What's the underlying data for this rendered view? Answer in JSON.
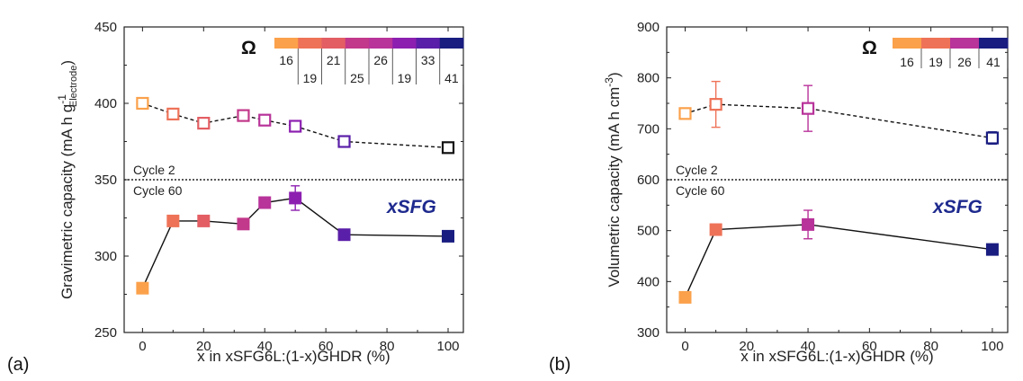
{
  "colors": {
    "c16": "#fba14b",
    "c19": "#ee7257",
    "c21": "#e35e63",
    "c25": "#c2388a",
    "c26": "#b8339a",
    "c33": "#8c1fb0",
    "c41": "#191d80",
    "black": "#111111"
  },
  "chart_data": [
    {
      "panel": "(a)",
      "type": "scatter",
      "xlabel": "x in xSFG6L:(1-x)GHDR (%)",
      "ylabel": "Gravimetric capacity (mA h g",
      "ylabel_sup": "-1",
      "ylabel_sub": "Electrode",
      "ylabel_close": ")",
      "xlim": [
        -6,
        105
      ],
      "ylim": [
        250,
        450
      ],
      "xticks": [
        0,
        20,
        40,
        60,
        80,
        100
      ],
      "yticks": [
        250,
        300,
        350,
        400,
        450
      ],
      "divider_y": 350,
      "cycle_top": "Cycle 2",
      "cycle_bottom": "Cycle 60",
      "series_label": "xSFG",
      "colorbar": {
        "symbol": "Ω",
        "colors": [
          "#fba14b",
          "#ee7257",
          "#e35e63",
          "#c2388a",
          "#b8339a",
          "#8c1fb0",
          "#5a1fa8",
          "#191d80"
        ],
        "top_labels": [
          "16",
          "21",
          "26",
          "33"
        ],
        "bottom_labels": [
          "19",
          "25",
          "19",
          "41"
        ]
      },
      "series": [
        {
          "name": "Cycle 2",
          "marker": "open-square",
          "line": "dashed",
          "points": [
            {
              "x": 0,
              "y": 400,
              "err": 2,
              "color": "#fba14b"
            },
            {
              "x": 10,
              "y": 393,
              "err": 2,
              "color": "#ee7257"
            },
            {
              "x": 20,
              "y": 387,
              "err": 3,
              "color": "#e35e63"
            },
            {
              "x": 33,
              "y": 392,
              "err": 2,
              "color": "#c2388a"
            },
            {
              "x": 40,
              "y": 389,
              "err": 2,
              "color": "#b8339a"
            },
            {
              "x": 50,
              "y": 385,
              "err": 2,
              "color": "#8c1fb0"
            },
            {
              "x": 66,
              "y": 375,
              "err": 2,
              "color": "#5a1fa8"
            },
            {
              "x": 100,
              "y": 371,
              "err": 2,
              "color": "#111111"
            }
          ]
        },
        {
          "name": "Cycle 60",
          "marker": "filled-square",
          "line": "solid",
          "points": [
            {
              "x": 0,
              "y": 279,
              "err": 0,
              "color": "#fba14b"
            },
            {
              "x": 10,
              "y": 323,
              "err": 0,
              "color": "#ee7257"
            },
            {
              "x": 20,
              "y": 323,
              "err": 0,
              "color": "#e35e63"
            },
            {
              "x": 33,
              "y": 321,
              "err": 0,
              "color": "#c2388a"
            },
            {
              "x": 40,
              "y": 335,
              "err": 0,
              "color": "#b8339a"
            },
            {
              "x": 50,
              "y": 338,
              "err": 8,
              "color": "#8c1fb0"
            },
            {
              "x": 66,
              "y": 314,
              "err": 0,
              "color": "#5a1fa8"
            },
            {
              "x": 100,
              "y": 313,
              "err": 0,
              "color": "#191d80"
            }
          ]
        }
      ]
    },
    {
      "panel": "(b)",
      "type": "scatter",
      "xlabel": "x in xSFG6L:(1-x)GHDR (%)",
      "ylabel": "Volumetric capacity (mA h cm",
      "ylabel_sup": "-3",
      "ylabel_sub": "",
      "ylabel_close": ")",
      "xlim": [
        -6,
        105
      ],
      "ylim": [
        300,
        900
      ],
      "xticks": [
        0,
        20,
        40,
        60,
        80,
        100
      ],
      "yticks": [
        300,
        400,
        500,
        600,
        700,
        800,
        900
      ],
      "divider_y": 600,
      "cycle_top": "Cycle 2",
      "cycle_bottom": "Cycle 60",
      "series_label": "xSFG",
      "colorbar": {
        "symbol": "Ω",
        "colors": [
          "#fba14b",
          "#ee7257",
          "#b8339a",
          "#191d80"
        ],
        "top_labels": [],
        "bottom_labels": [
          "16",
          "19",
          "26",
          "41"
        ]
      },
      "series": [
        {
          "name": "Cycle 2",
          "marker": "open-square",
          "line": "dashed",
          "points": [
            {
              "x": 0,
              "y": 730,
              "err": 8,
              "color": "#fba14b"
            },
            {
              "x": 10,
              "y": 748,
              "err": 45,
              "color": "#ee7257"
            },
            {
              "x": 40,
              "y": 740,
              "err": 45,
              "color": "#b8339a"
            },
            {
              "x": 100,
              "y": 682,
              "err": 12,
              "color": "#191d80"
            }
          ]
        },
        {
          "name": "Cycle 60",
          "marker": "filled-square",
          "line": "solid",
          "points": [
            {
              "x": 0,
              "y": 369,
              "err": 0,
              "color": "#fba14b"
            },
            {
              "x": 10,
              "y": 502,
              "err": 0,
              "color": "#ee7257"
            },
            {
              "x": 40,
              "y": 512,
              "err": 28,
              "color": "#b8339a"
            },
            {
              "x": 100,
              "y": 463,
              "err": 0,
              "color": "#191d80"
            }
          ]
        }
      ]
    }
  ]
}
